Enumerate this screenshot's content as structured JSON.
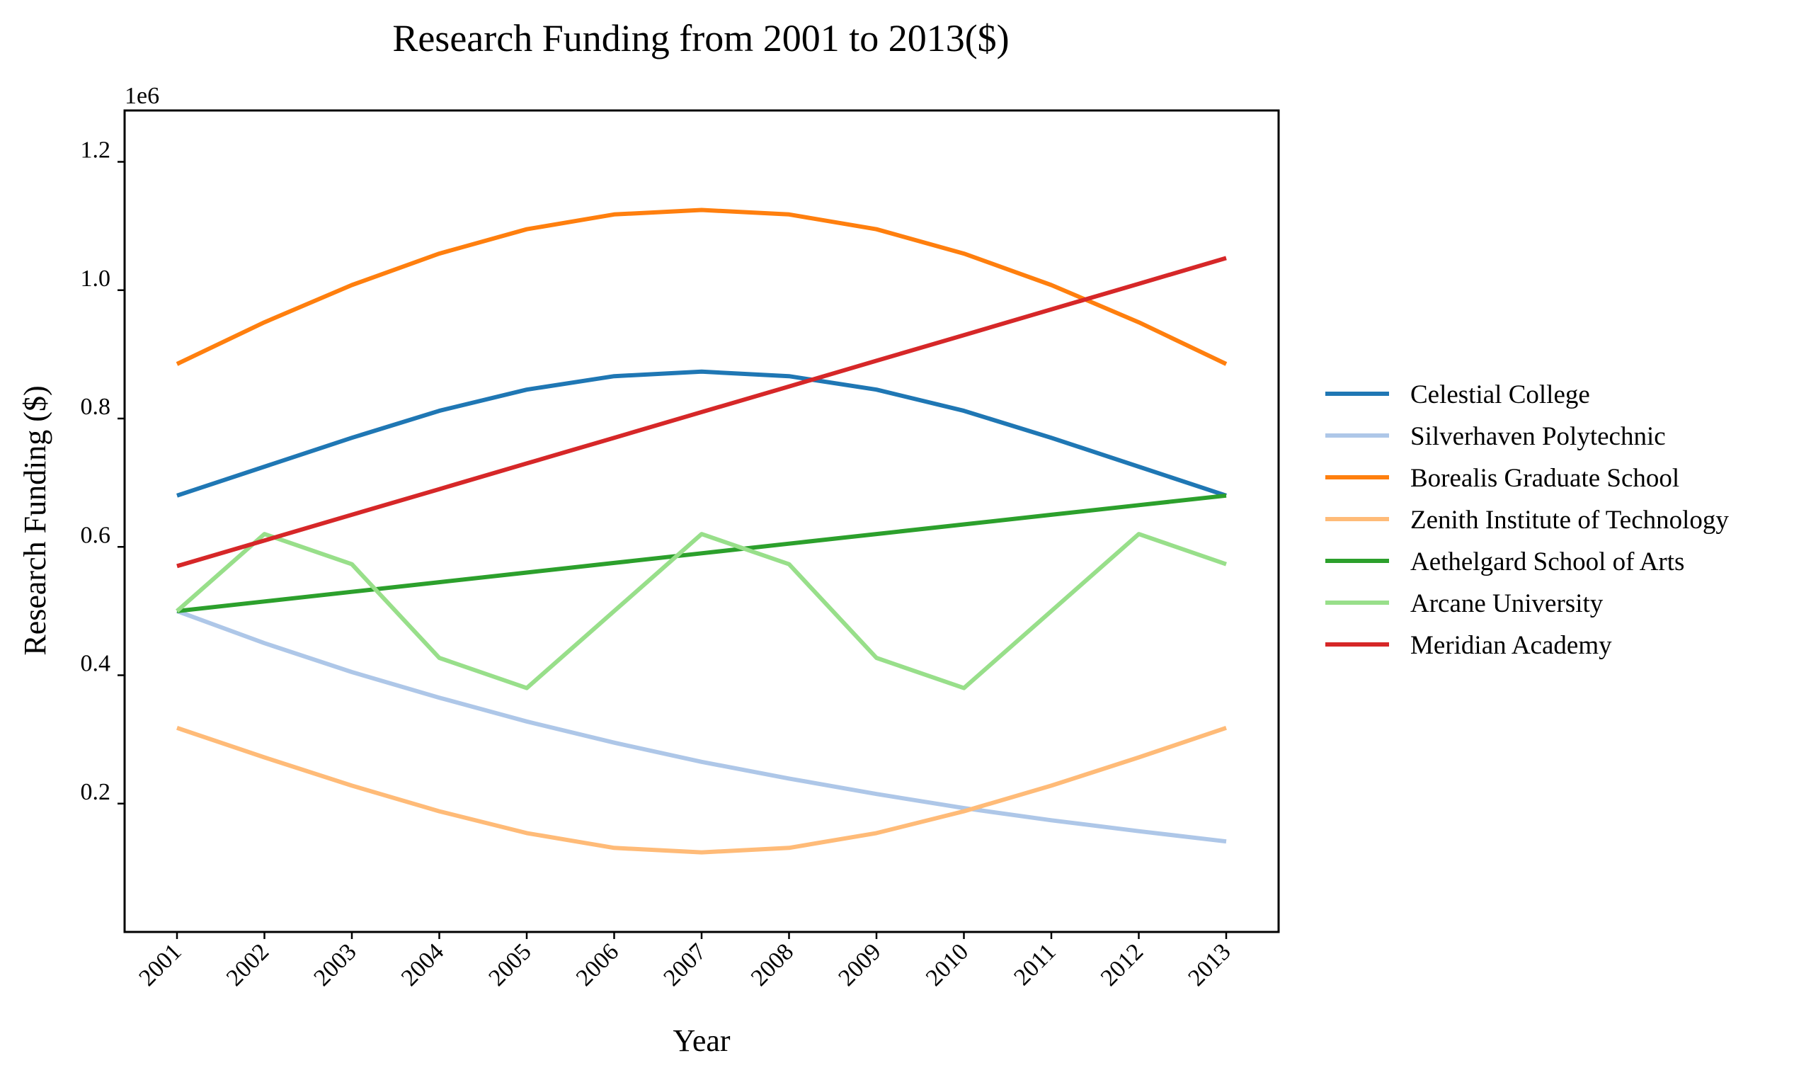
{
  "chart_data": {
    "type": "line",
    "title": "Research Funding from 2001 to 2013($)",
    "xlabel": "Year",
    "ylabel": "Research Funding ($)",
    "y_offset_label": "1e6",
    "categories": [
      "2001",
      "2002",
      "2003",
      "2004",
      "2005",
      "2006",
      "2007",
      "2008",
      "2009",
      "2010",
      "2011",
      "2012",
      "2013"
    ],
    "yticks": [
      0.2,
      0.4,
      0.6,
      0.8,
      1.0,
      1.2
    ],
    "ytick_labels": [
      "0.2",
      "0.4",
      "0.6",
      "0.8",
      "1.0",
      "1.2"
    ],
    "ylim": [
      0.0,
      1.28
    ],
    "y_units_multiplier": 1000000,
    "grid": false,
    "legend_position": "right, outside plot",
    "series": [
      {
        "name": "Celestial College",
        "color": "#1f77b4",
        "values": [
          0.68,
          0.725,
          0.77,
          0.812,
          0.845,
          0.866,
          0.873,
          0.866,
          0.845,
          0.812,
          0.77,
          0.725,
          0.68
        ]
      },
      {
        "name": "Silverhaven Polytechnic",
        "color": "#aec7e8",
        "values": [
          0.5,
          0.45,
          0.405,
          0.365,
          0.328,
          0.295,
          0.265,
          0.239,
          0.215,
          0.193,
          0.174,
          0.157,
          0.141
        ]
      },
      {
        "name": "Borealis Graduate School",
        "color": "#ff7f0e",
        "values": [
          0.885,
          0.95,
          1.008,
          1.057,
          1.095,
          1.118,
          1.125,
          1.118,
          1.095,
          1.057,
          1.008,
          0.95,
          0.885
        ]
      },
      {
        "name": "Zenith Institute of Technology",
        "color": "#ffbb78",
        "values": [
          0.318,
          0.272,
          0.228,
          0.188,
          0.154,
          0.131,
          0.124,
          0.131,
          0.154,
          0.188,
          0.228,
          0.272,
          0.318
        ]
      },
      {
        "name": "Aethelgard School of Arts",
        "color": "#2ca02c",
        "values": [
          0.5,
          0.515,
          0.53,
          0.545,
          0.56,
          0.575,
          0.59,
          0.605,
          0.62,
          0.635,
          0.65,
          0.665,
          0.68
        ]
      },
      {
        "name": "Arcane University",
        "color": "#98df8a",
        "values": [
          0.5,
          0.62,
          0.573,
          0.427,
          0.38,
          0.5,
          0.62,
          0.573,
          0.427,
          0.38,
          0.5,
          0.62,
          0.573
        ]
      },
      {
        "name": "Meridian Academy",
        "color": "#d62728",
        "values": [
          0.57,
          0.61,
          0.65,
          0.69,
          0.73,
          0.77,
          0.81,
          0.85,
          0.89,
          0.93,
          0.97,
          1.01,
          1.05
        ]
      }
    ]
  }
}
